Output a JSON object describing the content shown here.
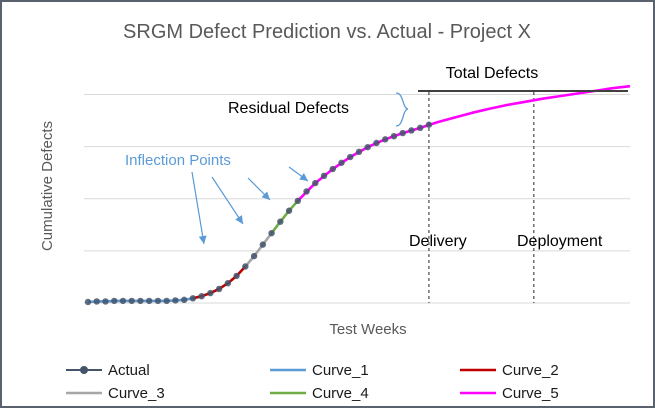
{
  "chart_data": {
    "type": "line",
    "title": "SRGM Defect Prediction vs. Actual - Project X",
    "xlabel": "Test Weeks",
    "ylabel": "Cumulative Defects",
    "xlim": [
      0,
      62
    ],
    "ylim": [
      0,
      4
    ],
    "grid": true,
    "series": [
      {
        "name": "Actual",
        "color": "#44546a",
        "marker": "circle",
        "x": [
          0,
          1,
          2,
          3,
          4,
          5,
          6,
          7,
          8,
          9,
          10,
          11,
          12,
          13,
          14,
          15,
          16,
          17,
          18,
          19,
          20,
          21,
          22,
          23,
          24,
          25,
          26,
          27,
          28,
          29,
          30,
          31,
          32,
          33,
          34,
          35,
          36,
          37,
          38,
          39
        ],
        "y": [
          0.02,
          0.03,
          0.03,
          0.04,
          0.04,
          0.04,
          0.04,
          0.04,
          0.04,
          0.04,
          0.05,
          0.06,
          0.09,
          0.13,
          0.19,
          0.27,
          0.38,
          0.52,
          0.7,
          0.9,
          1.12,
          1.34,
          1.56,
          1.77,
          1.96,
          2.14,
          2.3,
          2.44,
          2.57,
          2.69,
          2.8,
          2.9,
          2.99,
          3.07,
          3.14,
          3.2,
          3.26,
          3.31,
          3.36,
          3.42
        ]
      },
      {
        "name": "Curve_1",
        "color": "#5b9bd5",
        "x": [
          0,
          1,
          2,
          3,
          4,
          5,
          6,
          7,
          8,
          9,
          10,
          11,
          12
        ],
        "y": [
          0.02,
          0.03,
          0.03,
          0.04,
          0.04,
          0.04,
          0.04,
          0.04,
          0.04,
          0.04,
          0.05,
          0.06,
          0.09
        ]
      },
      {
        "name": "Curve_2",
        "color": "#c00000",
        "x": [
          12,
          13,
          14,
          15,
          16,
          17,
          18
        ],
        "y": [
          0.09,
          0.13,
          0.19,
          0.27,
          0.38,
          0.52,
          0.7
        ]
      },
      {
        "name": "Curve_3",
        "color": "#a6a6a6",
        "x": [
          18,
          19,
          20,
          21
        ],
        "y": [
          0.7,
          0.9,
          1.12,
          1.34
        ]
      },
      {
        "name": "Curve_4",
        "color": "#70ad47",
        "x": [
          21,
          22,
          23,
          24
        ],
        "y": [
          1.34,
          1.56,
          1.77,
          1.96
        ]
      },
      {
        "name": "Curve_5",
        "color": "#ff00ff",
        "x": [
          24,
          26,
          28,
          30,
          32,
          34,
          36,
          38,
          40,
          42,
          44,
          46,
          48,
          50,
          52,
          54,
          56,
          58,
          60,
          62
        ],
        "y": [
          1.96,
          2.3,
          2.57,
          2.8,
          2.99,
          3.14,
          3.26,
          3.36,
          3.47,
          3.56,
          3.65,
          3.73,
          3.8,
          3.86,
          3.92,
          3.97,
          4.02,
          4.07,
          4.12,
          4.16
        ]
      }
    ],
    "markers": [
      {
        "label": "Delivery",
        "x": 39
      },
      {
        "label": "Deployment",
        "x": 51
      }
    ],
    "total_defects_level": 4.47,
    "annotations": {
      "total_defects": "Total Defects",
      "residual_defects": "Residual Defects",
      "inflection_points": "Inflection Points"
    },
    "legend": {
      "placement": "bottom",
      "entries": [
        "Actual",
        "Curve_1",
        "Curve_2",
        "Curve_3",
        "Curve_4",
        "Curve_5"
      ]
    }
  }
}
